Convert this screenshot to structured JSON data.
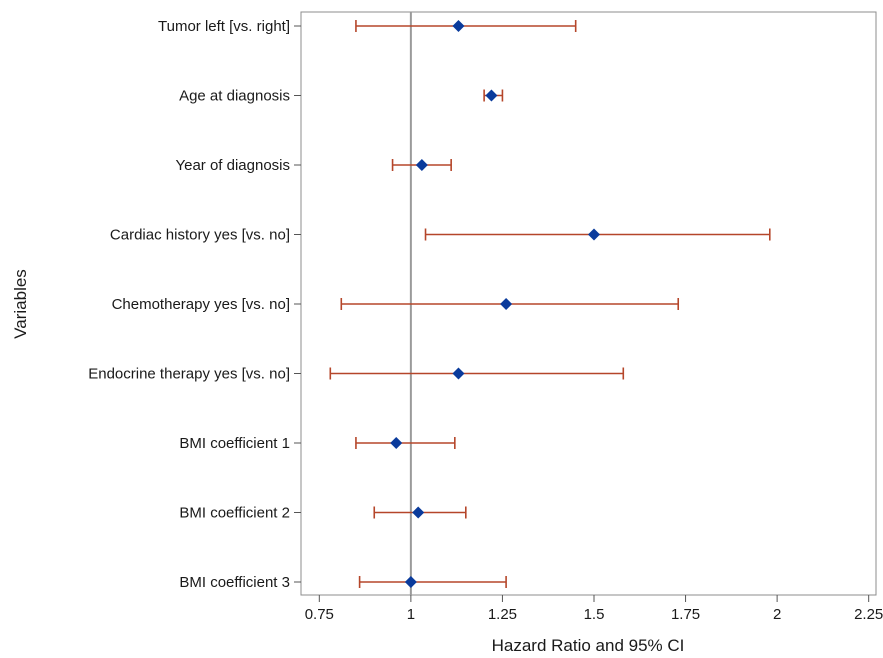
{
  "chart_data": {
    "type": "forest",
    "title": "",
    "xlabel": "Hazard Ratio and 95% CI",
    "ylabel": "Variables",
    "xlim": [
      0.7,
      2.27
    ],
    "xticks": [
      0.75,
      1,
      1.25,
      1.5,
      1.75,
      2,
      2.25
    ],
    "xtick_labels": [
      "0.75",
      "1",
      "1.25",
      "1.5",
      "1.75",
      "2",
      "2.25"
    ],
    "reference_line": 1,
    "grid": false,
    "legend": "none",
    "colors": {
      "marker": "#0a3b9c",
      "ci": "#b5462a",
      "refline": "#9a9a9a",
      "frame": "#8c8c8c"
    },
    "categories": [
      "Tumor left [vs. right]",
      "Age at diagnosis",
      "Year of diagnosis",
      "Cardiac history yes [vs. no]",
      "Chemotherapy yes [vs. no]",
      "Endocrine therapy yes [vs. no]",
      "BMI coefficient 1",
      "BMI coefficient 2",
      "BMI coefficient 3"
    ],
    "estimates": [
      1.13,
      1.22,
      1.03,
      1.5,
      1.26,
      1.13,
      0.96,
      1.02,
      1.0
    ],
    "ci_lower": [
      0.85,
      1.2,
      0.95,
      1.04,
      0.81,
      0.78,
      0.85,
      0.9,
      0.86
    ],
    "ci_upper": [
      1.45,
      1.25,
      1.11,
      1.98,
      1.73,
      1.58,
      1.12,
      1.15,
      1.26
    ]
  }
}
